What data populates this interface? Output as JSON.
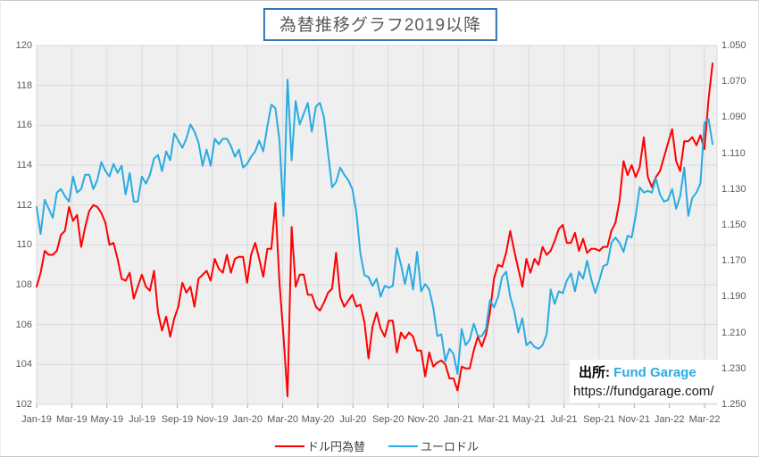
{
  "title": {
    "text": "為替推移グラフ2019以降"
  },
  "source": {
    "prefix": "出所:",
    "brand": "Fund Garage",
    "url": "https://fundgarage.com/"
  },
  "legend": {
    "items": [
      {
        "label": "ドル円為替",
        "color": "#ff0000"
      },
      {
        "label": "ユーロドル",
        "color": "#29abe2"
      }
    ]
  },
  "colors": {
    "red_line": "#ff0000",
    "blue_line": "#29abe2",
    "plot_bg": "#efefef",
    "grid": "#d9d9d9",
    "tick": "#a6a6a6",
    "axis_text": "#595959",
    "title_border": "#2e75b6",
    "brand_text": "#29abe2"
  },
  "chart_data": {
    "type": "line",
    "title": "為替推移グラフ2019以降",
    "grid": true,
    "legend_position": "bottom",
    "x_labels": [
      "Jan-19",
      "Mar-19",
      "May-19",
      "Jul-19",
      "Sep-19",
      "Nov-19",
      "Jan-20",
      "Mar-20",
      "May-20",
      "Jul-20",
      "Sep-20",
      "Nov-20",
      "Jan-21",
      "Mar-21",
      "May-21",
      "Jul-21",
      "Sep-21",
      "Nov-21",
      "Jan-22",
      "Mar-22"
    ],
    "x_unit": "weekly points from Jan-2019 to mid-Mar-2022",
    "left_axis": {
      "min": 102,
      "max": 120,
      "step": 2,
      "applies_to": "ドル円為替",
      "ticks": [
        "120",
        "118",
        "116",
        "114",
        "112",
        "110",
        "108",
        "106",
        "104",
        "102"
      ]
    },
    "right_axis": {
      "min": 1.05,
      "max": 1.25,
      "step": 0.02,
      "inverted": true,
      "applies_to": "ユーロドル",
      "ticks": [
        "1.050",
        "1.070",
        "1.090",
        "1.110",
        "1.130",
        "1.150",
        "1.170",
        "1.190",
        "1.210",
        "1.230",
        "1.250"
      ]
    },
    "series": [
      {
        "name": "ドル円為替",
        "axis": "left",
        "color": "#ff0000",
        "values": [
          107.9,
          108.6,
          109.7,
          109.5,
          109.5,
          109.7,
          110.5,
          110.7,
          111.9,
          111.2,
          111.5,
          109.9,
          110.9,
          111.7,
          112.0,
          111.9,
          111.6,
          111.1,
          110.0,
          110.1,
          109.3,
          108.3,
          108.2,
          108.6,
          107.3,
          107.9,
          108.5,
          107.9,
          107.7,
          108.7,
          106.6,
          105.7,
          106.4,
          105.4,
          106.3,
          106.9,
          108.1,
          107.6,
          107.9,
          106.9,
          108.3,
          108.5,
          108.7,
          108.2,
          109.3,
          108.8,
          108.6,
          109.5,
          108.6,
          109.3,
          109.4,
          109.4,
          108.1,
          109.5,
          110.1,
          109.3,
          108.4,
          109.8,
          109.8,
          112.1,
          108.1,
          105.4,
          102.4,
          110.9,
          107.9,
          108.5,
          108.5,
          107.5,
          107.5,
          106.9,
          106.7,
          107.1,
          107.6,
          107.8,
          109.6,
          107.4,
          106.9,
          107.2,
          107.5,
          106.9,
          107.0,
          106.1,
          104.3,
          105.9,
          106.6,
          105.8,
          105.4,
          106.2,
          106.2,
          104.6,
          105.6,
          105.3,
          105.6,
          105.4,
          104.7,
          104.7,
          103.4,
          104.6,
          103.9,
          104.1,
          104.2,
          104.0,
          103.3,
          103.3,
          102.7,
          103.9,
          103.8,
          103.8,
          104.7,
          105.4,
          104.9,
          105.5,
          106.6,
          108.3,
          109.0,
          108.9,
          109.6,
          110.7,
          109.7,
          108.8,
          107.9,
          109.3,
          108.6,
          109.3,
          109.0,
          109.9,
          109.5,
          109.7,
          110.2,
          110.8,
          111.0,
          110.1,
          110.1,
          110.6,
          109.7,
          110.3,
          109.6,
          109.8,
          109.8,
          109.7,
          109.9,
          109.9,
          110.7,
          111.1,
          112.2,
          114.2,
          113.5,
          114.0,
          113.4,
          113.9,
          115.4,
          113.4,
          112.9,
          113.4,
          113.7,
          114.4,
          115.1,
          115.8,
          114.2,
          113.7,
          115.2,
          115.2,
          115.4,
          115.0,
          115.5,
          114.8,
          117.3,
          119.1
        ]
      },
      {
        "name": "ユーロドル",
        "axis": "right",
        "color": "#29abe2",
        "values": [
          1.14,
          1.155,
          1.136,
          1.141,
          1.146,
          1.132,
          1.13,
          1.134,
          1.137,
          1.123,
          1.132,
          1.13,
          1.122,
          1.122,
          1.13,
          1.125,
          1.115,
          1.12,
          1.123,
          1.116,
          1.121,
          1.117,
          1.133,
          1.121,
          1.137,
          1.137,
          1.123,
          1.127,
          1.122,
          1.113,
          1.111,
          1.12,
          1.109,
          1.114,
          1.099,
          1.103,
          1.107,
          1.102,
          1.094,
          1.098,
          1.104,
          1.117,
          1.108,
          1.117,
          1.102,
          1.105,
          1.102,
          1.102,
          1.106,
          1.112,
          1.108,
          1.118,
          1.116,
          1.112,
          1.109,
          1.103,
          1.109,
          1.095,
          1.083,
          1.085,
          1.103,
          1.145,
          1.069,
          1.114,
          1.081,
          1.094,
          1.088,
          1.082,
          1.098,
          1.084,
          1.082,
          1.09,
          1.11,
          1.129,
          1.126,
          1.118,
          1.122,
          1.125,
          1.13,
          1.143,
          1.166,
          1.178,
          1.179,
          1.184,
          1.18,
          1.19,
          1.184,
          1.185,
          1.184,
          1.163,
          1.172,
          1.183,
          1.172,
          1.186,
          1.165,
          1.187,
          1.183,
          1.186,
          1.196,
          1.212,
          1.211,
          1.226,
          1.219,
          1.222,
          1.233,
          1.208,
          1.217,
          1.214,
          1.205,
          1.212,
          1.212,
          1.208,
          1.192,
          1.196,
          1.19,
          1.179,
          1.176,
          1.19,
          1.198,
          1.21,
          1.202,
          1.217,
          1.215,
          1.218,
          1.219,
          1.217,
          1.211,
          1.186,
          1.194,
          1.187,
          1.188,
          1.181,
          1.177,
          1.187,
          1.176,
          1.18,
          1.17,
          1.18,
          1.188,
          1.181,
          1.173,
          1.172,
          1.16,
          1.157,
          1.16,
          1.165,
          1.156,
          1.157,
          1.145,
          1.129,
          1.132,
          1.131,
          1.132,
          1.124,
          1.133,
          1.137,
          1.136,
          1.13,
          1.141,
          1.134,
          1.118,
          1.145,
          1.135,
          1.132,
          1.127,
          1.093,
          1.091,
          1.105
        ]
      }
    ]
  }
}
